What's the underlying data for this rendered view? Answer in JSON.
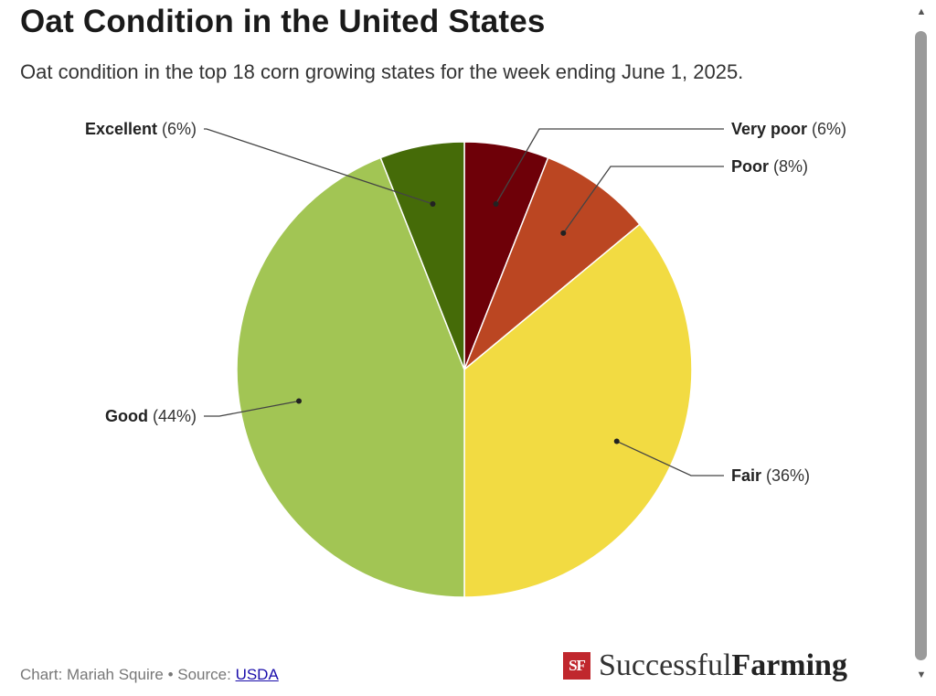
{
  "header": {
    "title": "Oat Condition in the United States",
    "subtitle": "Oat condition in the top 18 corn growing states for the week ending June 1, 2025."
  },
  "chart_data": {
    "type": "pie",
    "title": "Oat Condition in the United States",
    "subtitle": "Oat condition in the top 18 corn growing states for the week ending June 1, 2025.",
    "slices": [
      {
        "label": "Very poor",
        "value": 6,
        "display": "(6%)",
        "color": "#6e0008"
      },
      {
        "label": "Poor",
        "value": 8,
        "display": "(8%)",
        "color": "#bb4622"
      },
      {
        "label": "Fair",
        "value": 36,
        "display": "(36%)",
        "color": "#f2db42"
      },
      {
        "label": "Good",
        "value": 44,
        "display": "(44%)",
        "color": "#a2c554"
      },
      {
        "label": "Excellent",
        "value": 6,
        "display": "(6%)",
        "color": "#456b08"
      }
    ]
  },
  "footer": {
    "credit_prefix": "Chart: Mariah Squire • Source: ",
    "source_link": "USDA"
  },
  "logo": {
    "mark": "SF",
    "word1": "Successful",
    "word2": "Farming"
  },
  "scrollbar": {
    "up_icon": "▲",
    "down_icon": "▼"
  }
}
